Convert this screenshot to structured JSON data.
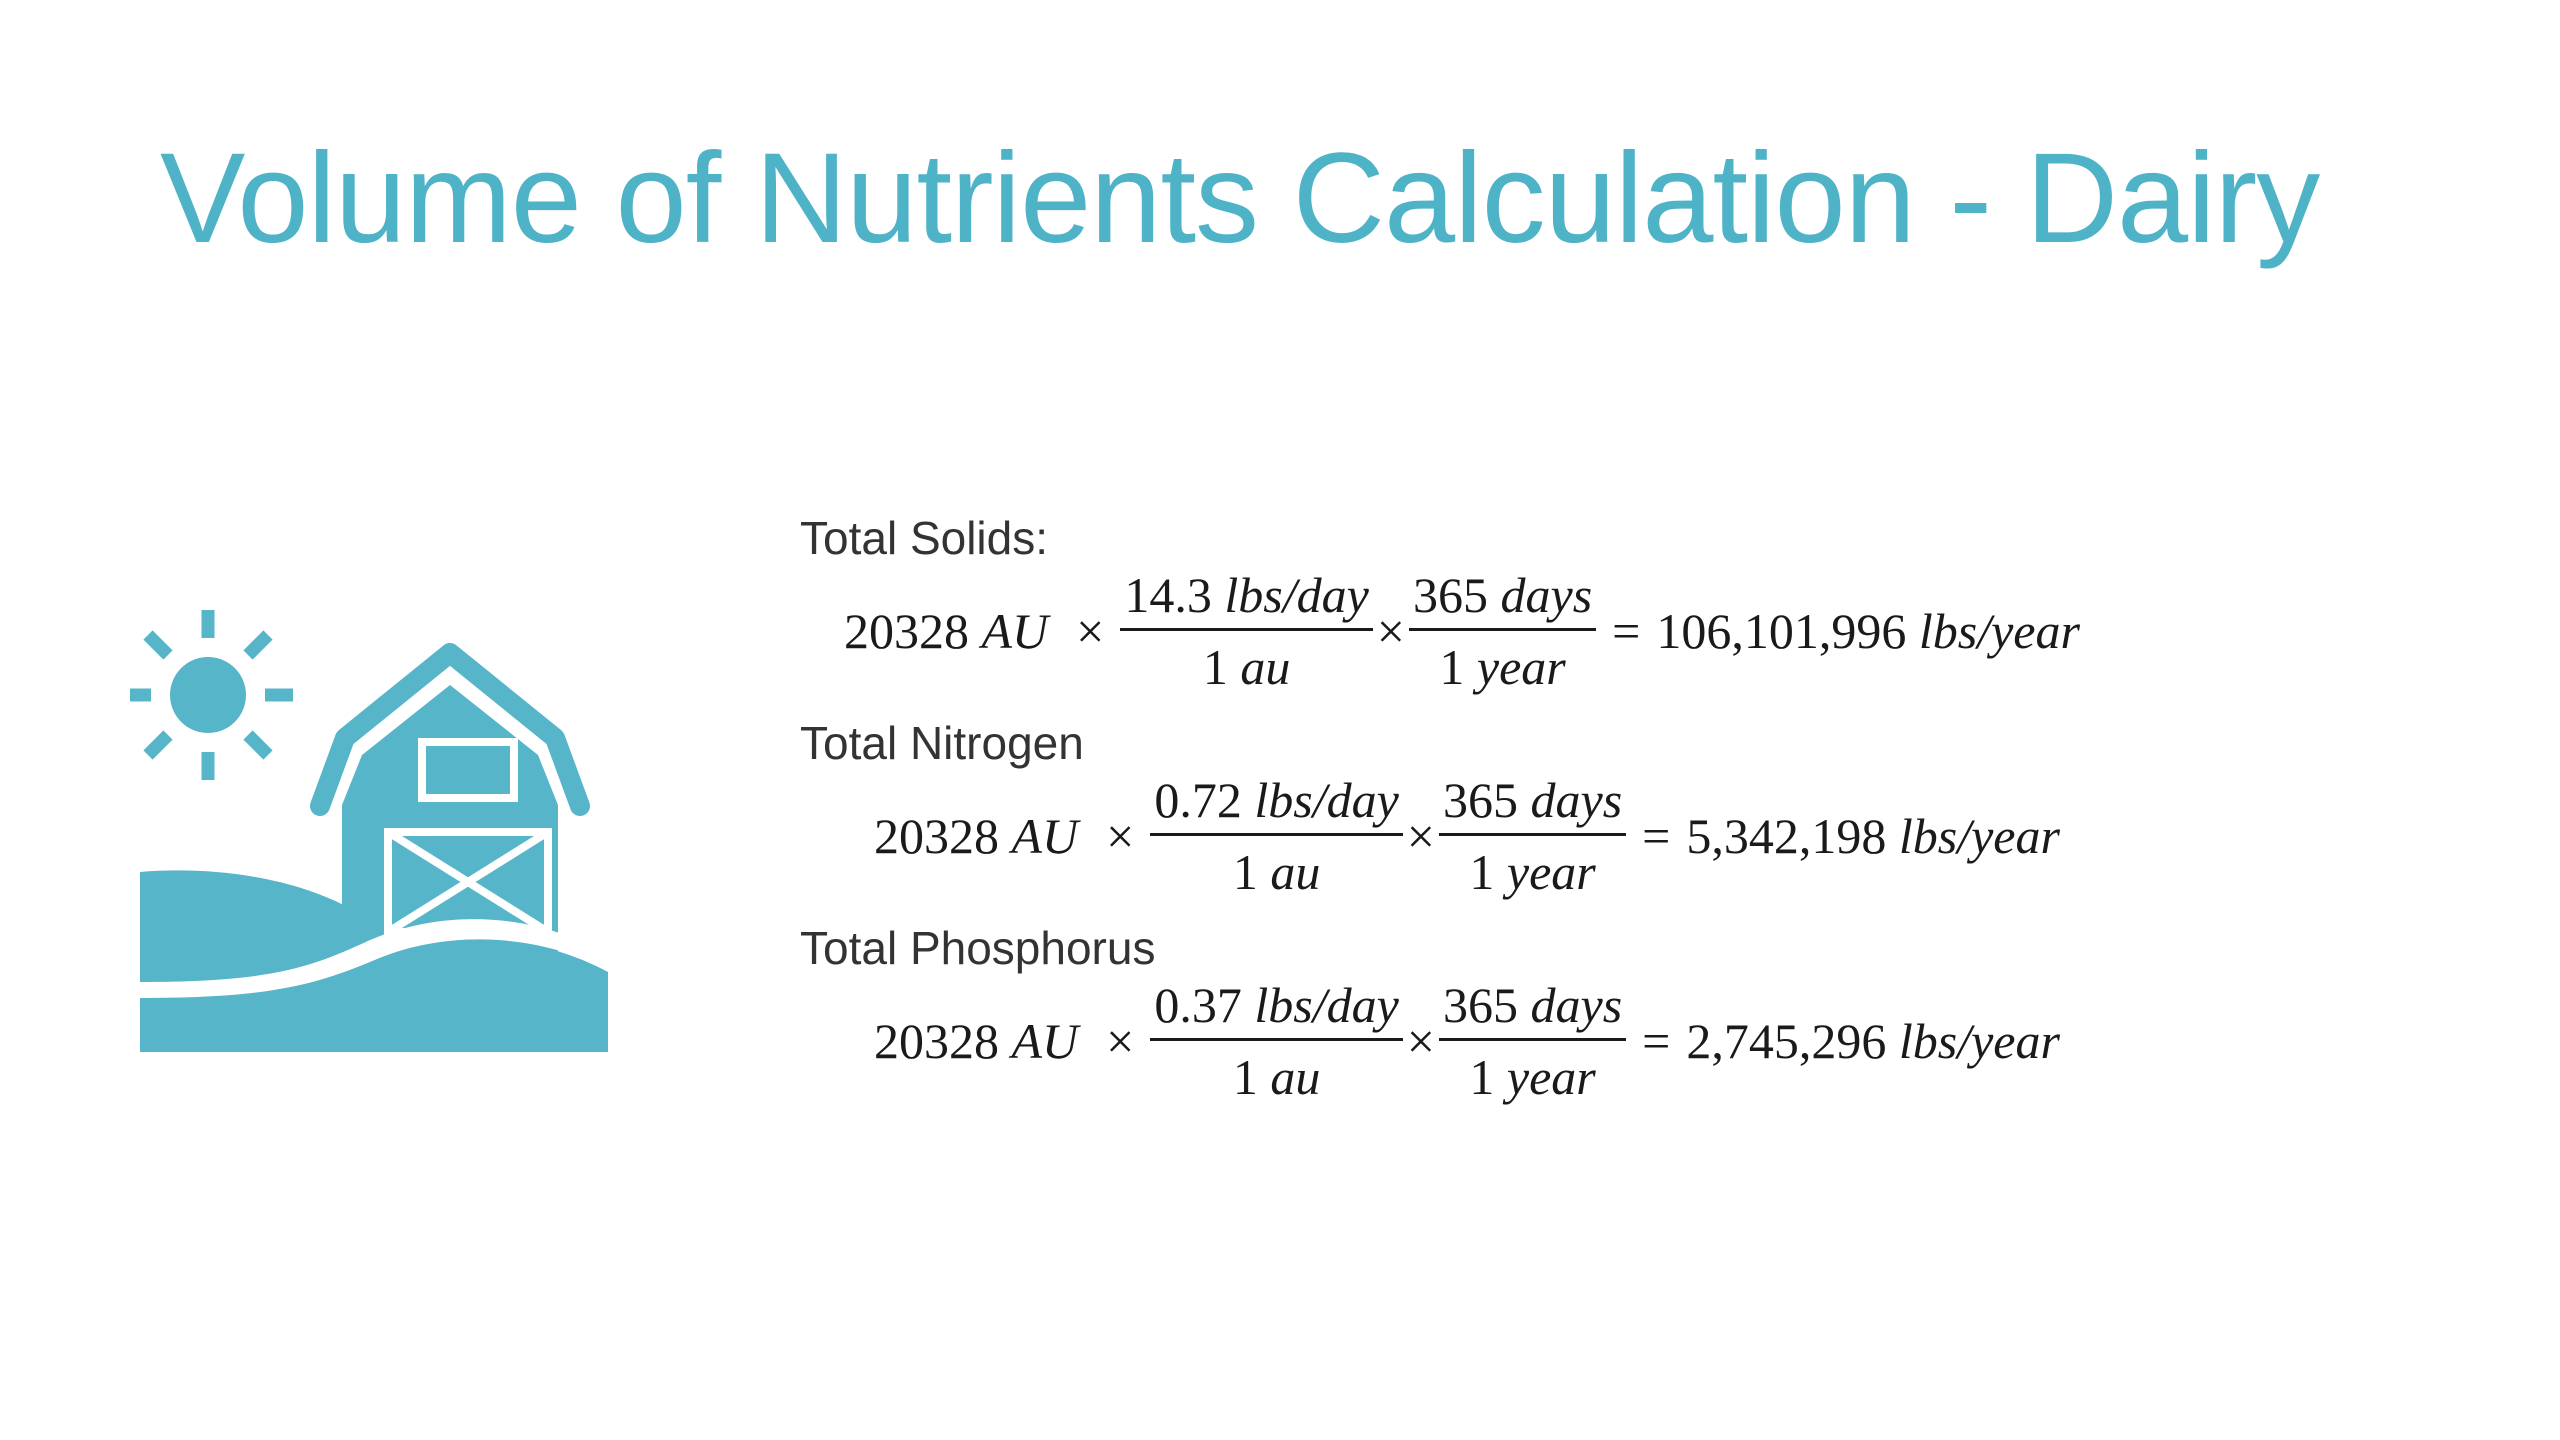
{
  "slide": {
    "title": "Volume of Nutrients Calculation - Dairy",
    "accent_color": "#4fb3c8",
    "icon": "barn-with-sun-icon"
  },
  "formulas": [
    {
      "label": "Total Solids:",
      "animal_units": "20328",
      "au_unit": "AU",
      "times": "×",
      "rate_value": "14.3",
      "rate_unit": "lbs/day",
      "per_value": "1",
      "per_unit": "au",
      "days_value": "365",
      "days_unit": "days",
      "year_value": "1",
      "year_unit": "year",
      "equals": "=",
      "result_value": "106,101,996",
      "result_unit": "lbs/year"
    },
    {
      "label": "Total Nitrogen",
      "animal_units": "20328",
      "au_unit": "AU",
      "times": "×",
      "rate_value": "0.72",
      "rate_unit": "lbs/day",
      "per_value": "1",
      "per_unit": "au",
      "days_value": "365",
      "days_unit": "days",
      "year_value": "1",
      "year_unit": "year",
      "equals": "=",
      "result_value": "5,342,198",
      "result_unit": "lbs/year"
    },
    {
      "label": "Total Phosphorus",
      "animal_units": "20328",
      "au_unit": "AU",
      "times": "×",
      "rate_value": "0.37",
      "rate_unit": "lbs/day",
      "per_value": "1",
      "per_unit": "au",
      "days_value": "365",
      "days_unit": "days",
      "year_value": "1",
      "year_unit": "year",
      "equals": "=",
      "result_value": "2,745,296",
      "result_unit": "lbs/year"
    }
  ]
}
